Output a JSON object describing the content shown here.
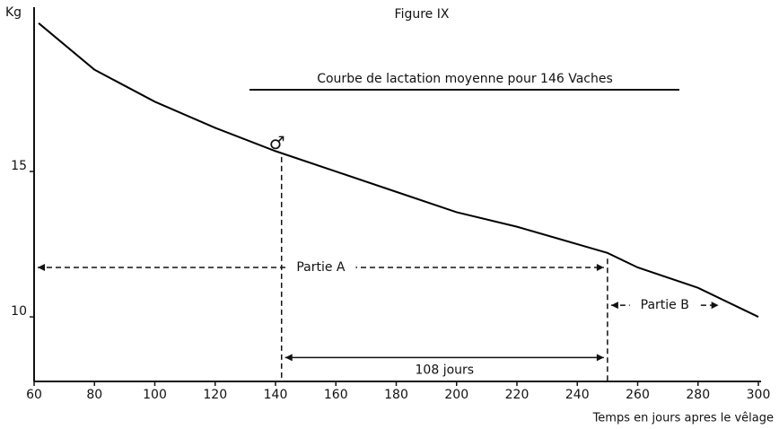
{
  "chart_data": {
    "type": "line",
    "title": "Figure IX",
    "subtitle": "Courbe de lactation moyenne pour 146 Vaches",
    "xlabel": "Temps en jours apres le vêlage",
    "ylabel": "Kg",
    "x": [
      61.5,
      80,
      100,
      120,
      140,
      160,
      180,
      200,
      220,
      240,
      250,
      260,
      280,
      300
    ],
    "values": [
      20.1,
      18.5,
      17.4,
      16.5,
      15.7,
      15.0,
      14.3,
      13.6,
      13.1,
      12.5,
      12.2,
      11.7,
      11.0,
      10.0
    ],
    "color": "#000000",
    "xlim": [
      60,
      300
    ],
    "xticks": [
      60,
      80,
      100,
      120,
      140,
      160,
      180,
      200,
      220,
      240,
      260,
      280,
      300
    ],
    "ylim": [
      7.78,
      20.65
    ],
    "yticks": [
      10,
      15
    ],
    "grid": false,
    "vlines": [
      {
        "x": 142,
        "y": 15.5
      },
      {
        "x": 250,
        "y": 12.0
      }
    ],
    "annotations": [
      {
        "text": "Partie A",
        "x": [
          60,
          250
        ],
        "y": 11.7
      },
      {
        "text": "Partie B",
        "x": [
          250,
          288
        ],
        "y": 10.4
      },
      {
        "text": "108 jours",
        "x": [
          142,
          250
        ],
        "y": 8.6
      }
    ],
    "marker": {
      "text": "♂",
      "x": 140.5,
      "y": 15.95
    }
  }
}
